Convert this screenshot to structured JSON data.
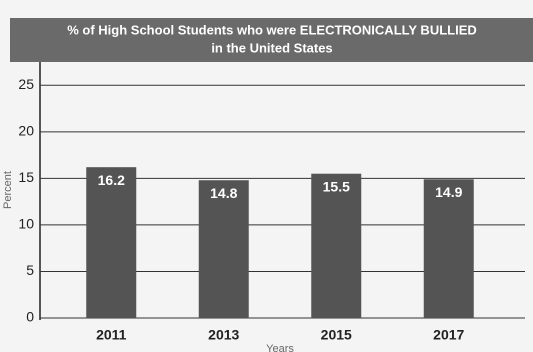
{
  "chart_data": {
    "type": "bar",
    "title": "% of High School Students who were ELECTRONICALLY BULLIED",
    "subtitle": "in the United States",
    "x_label": "Years",
    "y_label": "Percent",
    "categories": [
      "2011",
      "2013",
      "2015",
      "2017"
    ],
    "values": [
      16.2,
      14.8,
      15.5,
      14.9
    ],
    "color": "#545454",
    "ylim": [
      0,
      27.5
    ],
    "yticks": [
      0,
      5,
      10,
      15,
      20,
      25
    ],
    "grid": true
  }
}
